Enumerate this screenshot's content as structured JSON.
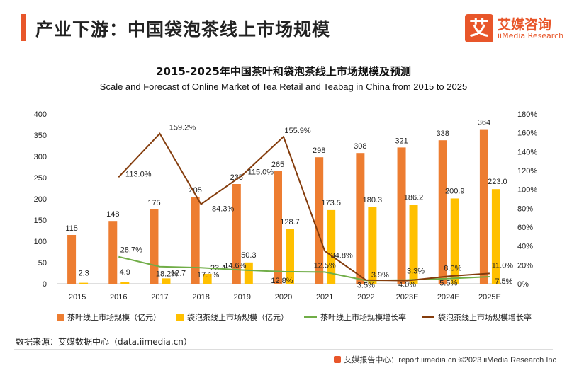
{
  "header": {
    "title": "产业下游：中国袋泡茶线上市场规模",
    "logo_glyph": "艾",
    "logo_name": "艾媒咨询",
    "logo_sub": "iiMedia Research"
  },
  "footer": {
    "source": "数据来源：艾媒数据中心（data.iimedia.cn）",
    "report": "艾媒报告中心：report.iimedia.cn  ©2023  iiMedia Research Inc"
  },
  "colors": {
    "accent": "#e8562a",
    "tea_bar": "#ed7d31",
    "teabag_bar": "#ffc000",
    "tea_growth": "#70ad47",
    "teabag_growth": "#843c0c"
  },
  "chart_data": {
    "type": "bar",
    "title": "2015-2025年中国茶叶和袋泡茶线上市场规模及预测",
    "subtitle": "Scale and Forecast of Online Market of Tea Retail and Teabag in China from 2015 to 2025",
    "categories": [
      "2015",
      "2016",
      "2017",
      "2018",
      "2019",
      "2020",
      "2021",
      "2022",
      "2023E",
      "2024E",
      "2025E"
    ],
    "ylim": [
      0,
      400
    ],
    "y_ticks": [
      "0",
      "50",
      "100",
      "150",
      "200",
      "250",
      "300",
      "350",
      "400"
    ],
    "y2lim": [
      0,
      180
    ],
    "y2_ticks": [
      "0%",
      "20%",
      "40%",
      "60%",
      "80%",
      "100%",
      "120%",
      "140%",
      "160%",
      "180%"
    ],
    "grid": false,
    "legend_position": "bottom",
    "series": [
      {
        "name": "茶叶线上市场规模（亿元）",
        "kind": "bar",
        "values": [
          115,
          148,
          175,
          205,
          235,
          265,
          298,
          308,
          321,
          338,
          364
        ],
        "labels": [
          "115",
          "148",
          "175",
          "205",
          "235",
          "265",
          "298",
          "308",
          "321",
          "338",
          "364"
        ]
      },
      {
        "name": "袋泡茶线上市场规模（亿元）",
        "kind": "bar",
        "values": [
          2.3,
          4.9,
          12.7,
          23.4,
          50.3,
          128.7,
          173.5,
          180.3,
          186.2,
          200.9,
          223.0
        ],
        "labels": [
          "2.3",
          "4.9",
          "12.7",
          "23.4",
          "50.3",
          "128.7",
          "173.5",
          "180.3",
          "186.2",
          "200.9",
          "223.0"
        ]
      },
      {
        "name": "茶叶线上市场规模增长率",
        "kind": "line",
        "axis": "right",
        "values": [
          null,
          28.7,
          18.2,
          17.1,
          14.6,
          12.8,
          12.5,
          3.5,
          4.0,
          5.5,
          7.5
        ],
        "labels": [
          null,
          "28.7%",
          "18.2%",
          "17.1%",
          "14.6%",
          "12.8%",
          "12.5%",
          "3.5%",
          "4.0%",
          "5.5%",
          "7.5%"
        ]
      },
      {
        "name": "袋泡茶线上市场规模增长率",
        "kind": "line",
        "axis": "right",
        "values": [
          null,
          113.0,
          159.2,
          84.3,
          115.0,
          155.9,
          34.8,
          3.9,
          3.3,
          8.0,
          11.0
        ],
        "labels": [
          null,
          "113.0%",
          "159.2%",
          "84.3%",
          "115.0%",
          "155.9%",
          "34.8%",
          "3.9%",
          "3.3%",
          "8.0%",
          "11.0%"
        ]
      }
    ]
  }
}
